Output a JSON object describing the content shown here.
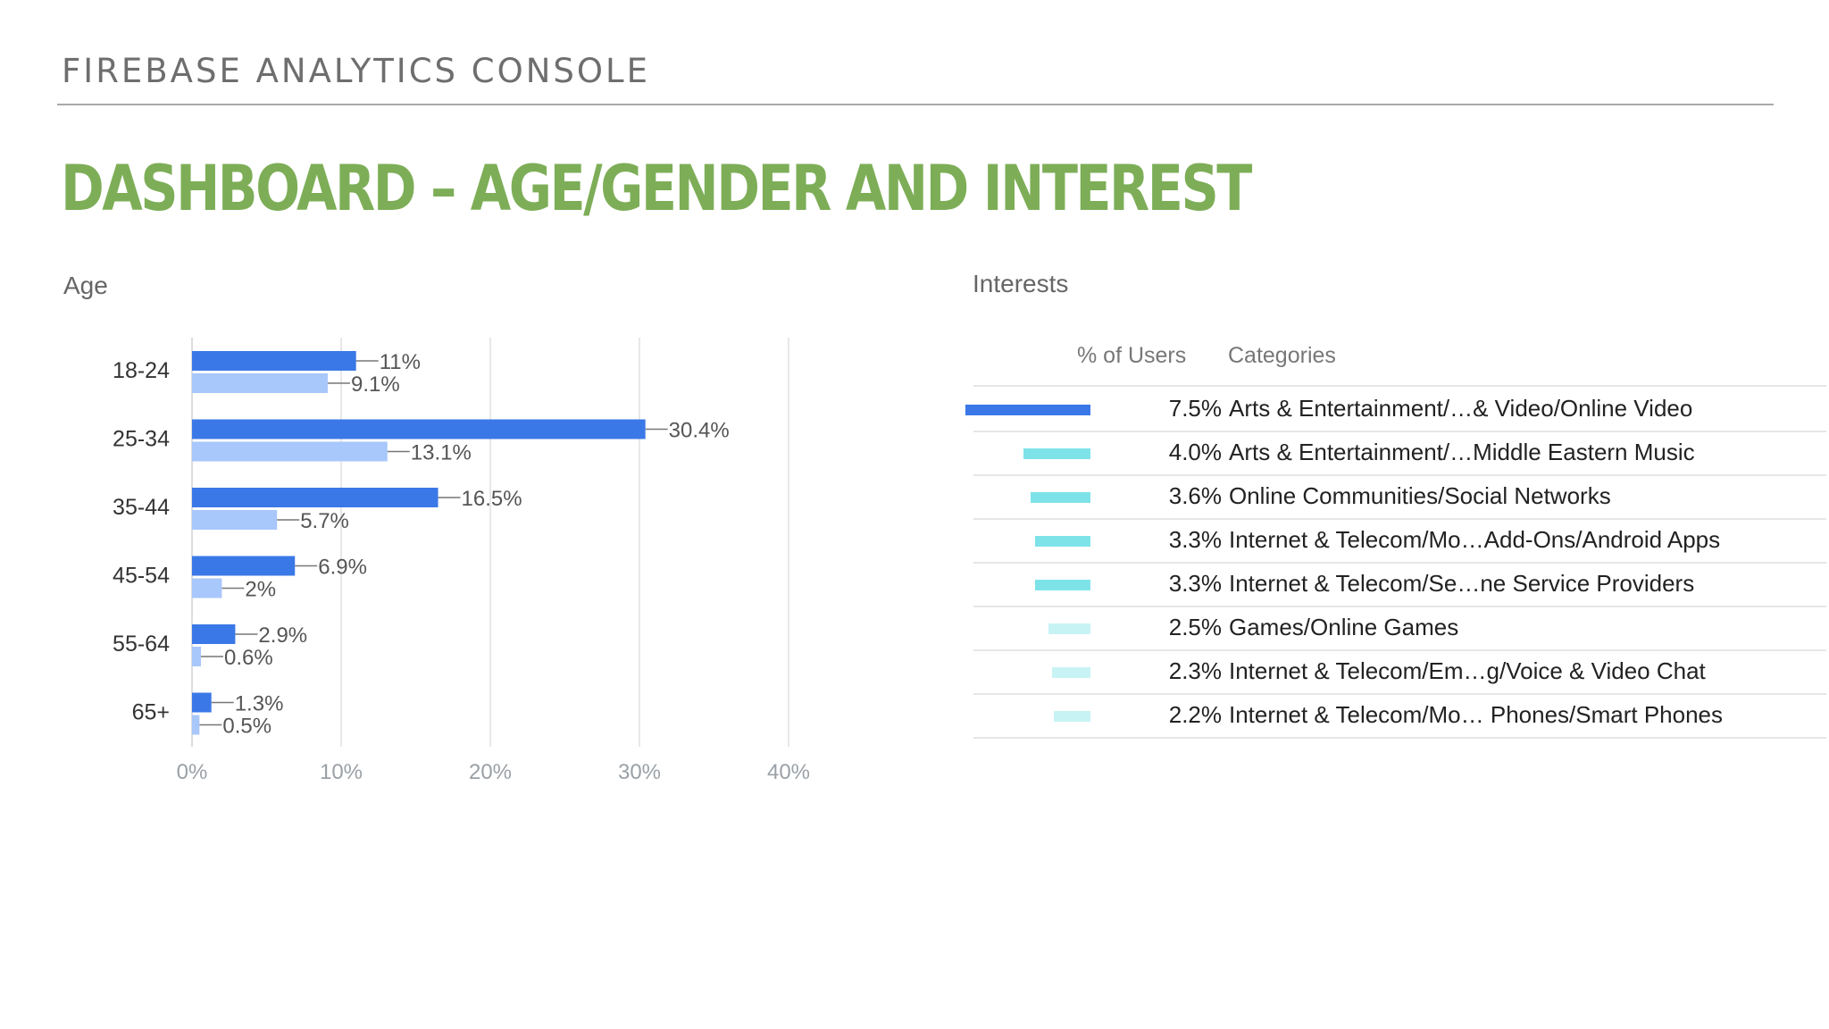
{
  "header": {
    "title": "FIREBASE ANALYTICS CONSOLE"
  },
  "slide": {
    "title": "DASHBOARD – AGE/GENDER AND INTEREST"
  },
  "age_panel": {
    "label": "Age"
  },
  "interests_panel": {
    "label": "Interests",
    "col_pct": "% of Users",
    "col_categories": "Categories",
    "rows": [
      {
        "pct": "7.5%",
        "value": 7.5,
        "category": "Arts & Entertainment/…& Video/Online Video",
        "color": "#3b78e7"
      },
      {
        "pct": "4.0%",
        "value": 4.0,
        "category": "Arts & Entertainment/…Middle Eastern Music",
        "color": "#7ee3e8"
      },
      {
        "pct": "3.6%",
        "value": 3.6,
        "category": "Online Communities/Social Networks",
        "color": "#7ee3e8"
      },
      {
        "pct": "3.3%",
        "value": 3.3,
        "category": "Internet & Telecom/Mo…Add-Ons/Android Apps",
        "color": "#7ee3e8"
      },
      {
        "pct": "3.3%",
        "value": 3.3,
        "category": "Internet & Telecom/Se…ne Service Providers",
        "color": "#7ee3e8"
      },
      {
        "pct": "2.5%",
        "value": 2.5,
        "category": "Games/Online Games",
        "color": "#c8f3f5"
      },
      {
        "pct": "2.3%",
        "value": 2.3,
        "category": "Internet & Telecom/Em…g/Voice & Video Chat",
        "color": "#c8f3f5"
      },
      {
        "pct": "2.2%",
        "value": 2.2,
        "category": "Internet & Telecom/Mo… Phones/Smart Phones",
        "color": "#c8f3f5"
      }
    ]
  },
  "chart_data": {
    "type": "bar",
    "orientation": "horizontal",
    "categories": [
      "18-24",
      "25-34",
      "35-44",
      "45-54",
      "55-64",
      "65+"
    ],
    "series": [
      {
        "values": [
          11,
          30.4,
          16.5,
          6.9,
          2.9,
          1.3
        ],
        "labels": [
          "11%",
          "30.4%",
          "16.5%",
          "6.9%",
          "2.9%",
          "1.3%"
        ],
        "color": "#3b78e7"
      },
      {
        "values": [
          9.1,
          13.1,
          5.7,
          2,
          0.6,
          0.5
        ],
        "labels": [
          "9.1%",
          "13.1%",
          "5.7%",
          "2%",
          "0.6%",
          "0.5%"
        ],
        "color": "#a8c7fa"
      }
    ],
    "xlim": [
      0,
      40
    ],
    "xticks": [
      "0%",
      "10%",
      "20%",
      "30%",
      "40%"
    ],
    "grid": true
  }
}
